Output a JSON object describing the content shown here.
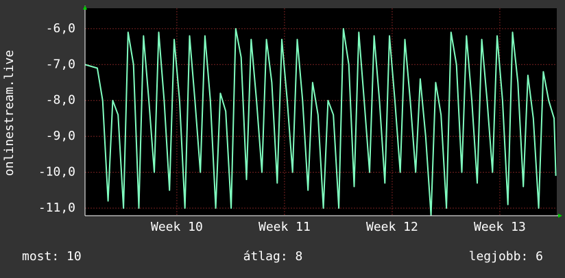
{
  "chart_data": {
    "type": "line",
    "ylabel": "onlinestream.live",
    "x": [
      9.147,
      9.261,
      9.311,
      9.361,
      9.404,
      9.454,
      9.504,
      9.547,
      9.597,
      9.647,
      9.69,
      9.74,
      9.79,
      9.832,
      9.882,
      9.932,
      9.975,
      10.025,
      10.075,
      10.118,
      10.168,
      10.218,
      10.261,
      10.311,
      10.361,
      10.404,
      10.454,
      10.504,
      10.547,
      10.597,
      10.647,
      10.69,
      10.74,
      10.79,
      10.832,
      10.882,
      10.932,
      10.975,
      11.025,
      11.075,
      11.118,
      11.168,
      11.218,
      11.261,
      11.311,
      11.361,
      11.404,
      11.454,
      11.504,
      11.547,
      11.597,
      11.647,
      11.69,
      11.74,
      11.79,
      11.832,
      11.882,
      11.932,
      11.975,
      12.025,
      12.075,
      12.118,
      12.168,
      12.218,
      12.261,
      12.311,
      12.361,
      12.404,
      12.454,
      12.504,
      12.547,
      12.597,
      12.647,
      12.69,
      12.74,
      12.79,
      12.832,
      12.882,
      12.932,
      12.975,
      13.025,
      13.075,
      13.118,
      13.168,
      13.218,
      13.261,
      13.311,
      13.361,
      13.404,
      13.454,
      13.504,
      13.52
    ],
    "series": [
      {
        "color": "#80ffc0",
        "values": [
          -7.0,
          -7.1,
          -8.0,
          -10.8,
          -8.0,
          -8.4,
          -11.0,
          -6.1,
          -7.0,
          -11.0,
          -6.2,
          -8.0,
          -10.0,
          -6.1,
          -8.0,
          -10.5,
          -6.3,
          -8.0,
          -11.0,
          -6.2,
          -8.0,
          -10.0,
          -6.2,
          -8.0,
          -11.0,
          -7.8,
          -8.3,
          -11.0,
          -6.0,
          -6.8,
          -10.2,
          -6.3,
          -8.0,
          -10.0,
          -6.3,
          -7.5,
          -10.3,
          -6.3,
          -8.0,
          -10.0,
          -6.3,
          -8.0,
          -10.5,
          -7.5,
          -8.4,
          -11.0,
          -8.0,
          -8.4,
          -11.0,
          -6.0,
          -7.0,
          -10.4,
          -6.1,
          -8.0,
          -10.0,
          -6.2,
          -8.0,
          -10.3,
          -6.2,
          -8.0,
          -10.0,
          -6.3,
          -8.0,
          -10.0,
          -7.4,
          -9.0,
          -11.2,
          -7.5,
          -8.4,
          -11.0,
          -6.1,
          -7.0,
          -10.0,
          -6.2,
          -8.0,
          -10.3,
          -6.3,
          -8.0,
          -10.0,
          -6.2,
          -8.0,
          -10.9,
          -6.1,
          -7.5,
          -10.4,
          -7.3,
          -8.5,
          -11.0,
          -7.2,
          -8.0,
          -8.5,
          -10.1
        ]
      }
    ],
    "xlim": [
      9.147,
      13.529
    ],
    "xticks": [
      {
        "value": 10,
        "label": "Week 10"
      },
      {
        "value": 11,
        "label": "Week 11"
      },
      {
        "value": 12,
        "label": "Week 12"
      },
      {
        "value": 13,
        "label": "Week 13"
      }
    ],
    "ylim": [
      -11.21,
      -5.43
    ],
    "yticks": [
      {
        "value": -11,
        "label": "-11,0"
      },
      {
        "value": -10,
        "label": "-10,0"
      },
      {
        "value": -9,
        "label": "-9,0"
      },
      {
        "value": -8,
        "label": "-8,0"
      },
      {
        "value": -7,
        "label": "-7,0"
      },
      {
        "value": -6,
        "label": "-6,0"
      }
    ],
    "grid": true,
    "footer": [
      "most: 10",
      "átlag: 8",
      "legjobb: 6"
    ]
  }
}
